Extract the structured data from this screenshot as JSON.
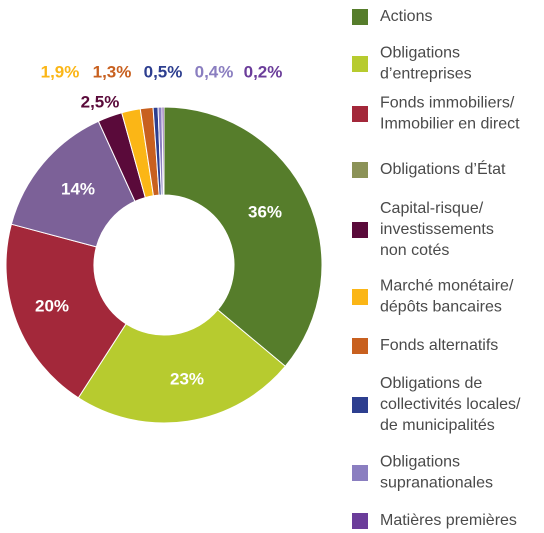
{
  "chart_data": {
    "type": "donut",
    "labels": [
      [
        "Actions"
      ],
      [
        "Obligations",
        "d’entreprises"
      ],
      [
        "Fonds immobiliers/",
        "Immobilier en direct"
      ],
      [
        "Obligations d’État"
      ],
      [
        "Capital-risque/",
        "investissements",
        "non cotés"
      ],
      [
        "Marché monétaire/",
        "dépôts bancaires"
      ],
      [
        "Fonds alternatifs"
      ],
      [
        "Obligations de",
        "collectivités locales/",
        "de municipalités"
      ],
      [
        "Obligations",
        "supranationales"
      ],
      [
        "Matières premières"
      ]
    ],
    "values": [
      36,
      23,
      20,
      14,
      2.5,
      1.9,
      1.3,
      0.5,
      0.4,
      0.2
    ],
    "value_labels": [
      "36%",
      "23%",
      "20%",
      "14%",
      "2,5%",
      "1,9%",
      "1,3%",
      "0,5%",
      "0,4%",
      "0,2%"
    ],
    "colors": [
      "#567d2b",
      "#b7cb2f",
      "#a3283a",
      "#7c6198",
      "#5a0a3a",
      "#fbb616",
      "#c8601f",
      "#2d3e8f",
      "#8a7ec0",
      "#6b3d9a"
    ],
    "legend_colors": [
      "#567d2b",
      "#b7cb2f",
      "#a3283a",
      "#8b9257",
      "#5a0a3a",
      "#fbb616",
      "#c8601f",
      "#2d3e8f",
      "#8a7ec0",
      "#6b3d9a"
    ]
  }
}
